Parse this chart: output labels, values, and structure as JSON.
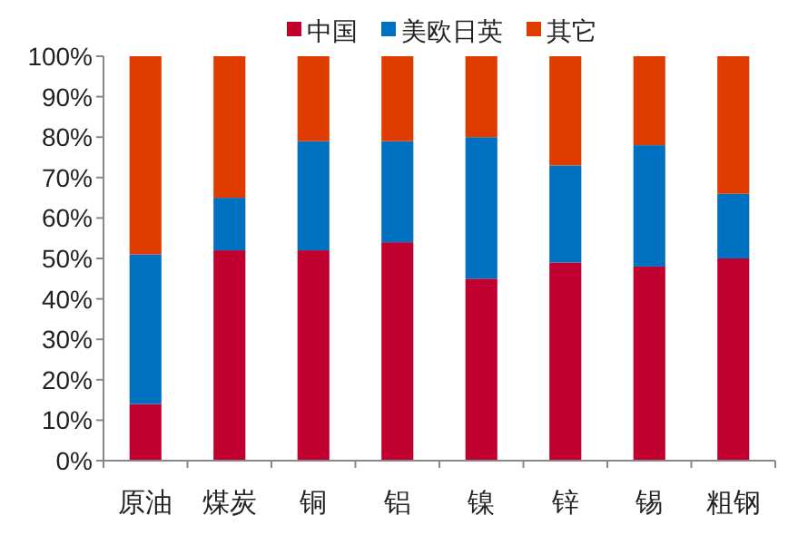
{
  "chart_data": {
    "type": "bar",
    "stacked": true,
    "legend": "top",
    "categories": [
      "原油",
      "煤炭",
      "铜",
      "铝",
      "镍",
      "锌",
      "锡",
      "粗钢"
    ],
    "series": [
      {
        "name": "中国",
        "color": "#c0002f",
        "values": [
          14,
          52,
          52,
          54,
          45,
          49,
          48,
          50
        ]
      },
      {
        "name": "美欧日英",
        "color": "#0070c0",
        "values": [
          37,
          13,
          27,
          25,
          35,
          24,
          30,
          16
        ]
      },
      {
        "name": "其它",
        "color": "#e03c00",
        "values": [
          49,
          35,
          21,
          21,
          20,
          27,
          22,
          34
        ]
      }
    ],
    "ylim": [
      0,
      100
    ],
    "yticks": [
      {
        "value": 0,
        "label": "0%"
      },
      {
        "value": 10,
        "label": "10%"
      },
      {
        "value": 20,
        "label": "20%"
      },
      {
        "value": 30,
        "label": "30%"
      },
      {
        "value": 40,
        "label": "40%"
      },
      {
        "value": 50,
        "label": "50%"
      },
      {
        "value": 60,
        "label": "60%"
      },
      {
        "value": 70,
        "label": "70%"
      },
      {
        "value": 80,
        "label": "80%"
      },
      {
        "value": 90,
        "label": "90%"
      },
      {
        "value": 100,
        "label": "100%"
      }
    ]
  }
}
